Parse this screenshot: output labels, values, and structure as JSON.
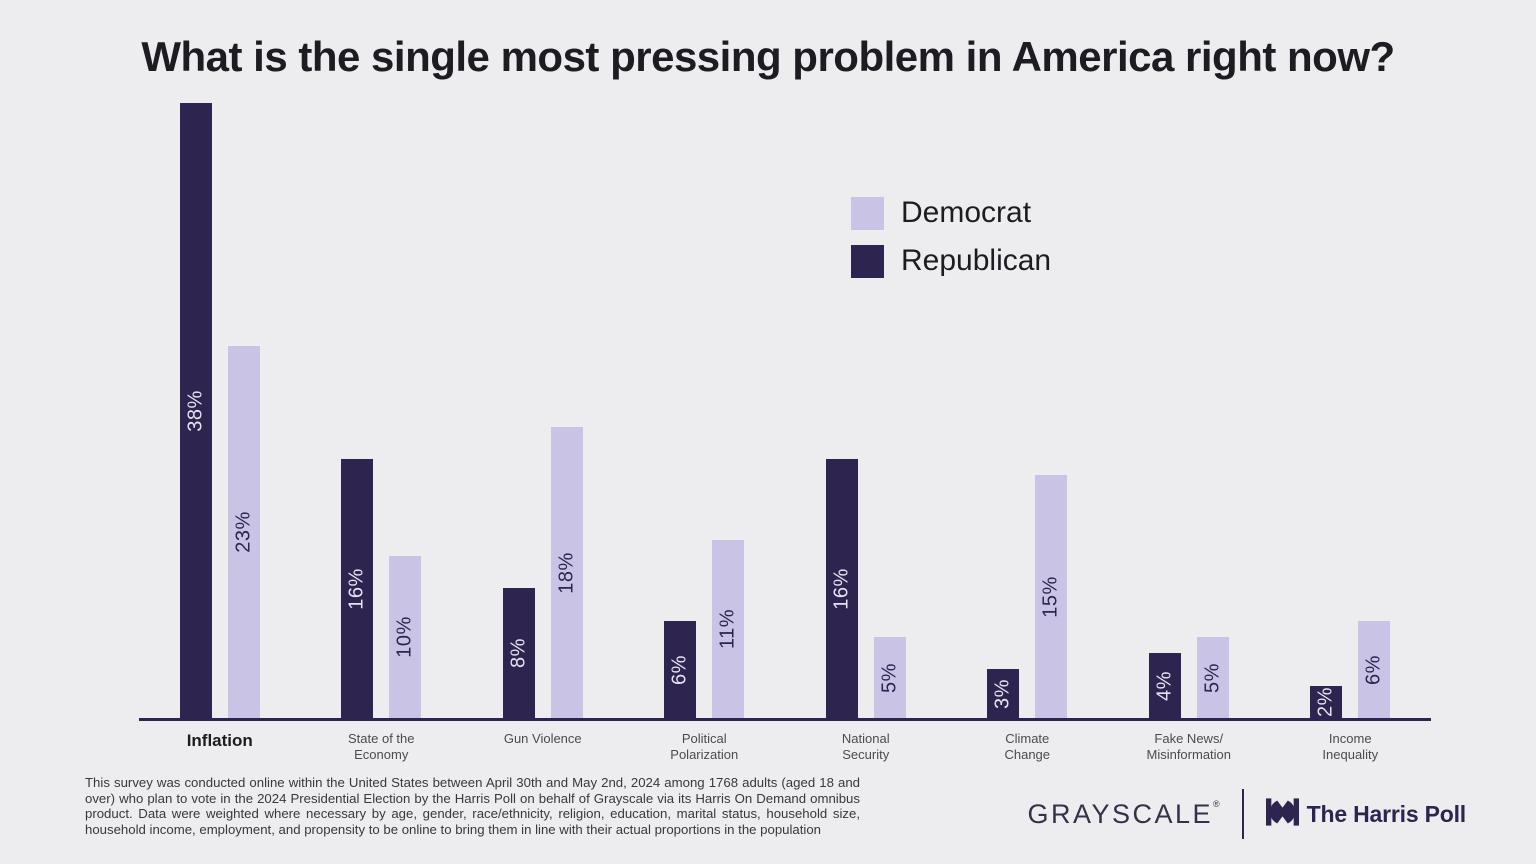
{
  "title": "What is the single most pressing problem in America right now?",
  "legend": {
    "items": [
      {
        "label": "Democrat",
        "color": "#c9c3e6"
      },
      {
        "label": "Republican",
        "color": "#2e2450"
      }
    ]
  },
  "chart_data": {
    "type": "bar",
    "title": "What is the single most pressing problem in America right now?",
    "categories": [
      "Inflation",
      "State of the Economy",
      "Gun Violence",
      "Political Polarization",
      "National Security",
      "Climate Change",
      "Fake News/Misinformation",
      "Income Inequality"
    ],
    "category_display": [
      "Inflation",
      "State of the\nEconomy",
      "Gun Violence",
      "Political\nPolarization",
      "National\nSecurity",
      "Climate\nChange",
      "Fake News/\nMisinformation",
      "Income\nInequality"
    ],
    "series": [
      {
        "name": "Republican",
        "color": "#2e2450",
        "value_label_color": "#e6e3f1",
        "values": [
          38,
          16,
          8,
          6,
          16,
          3,
          4,
          2
        ]
      },
      {
        "name": "Democrat",
        "color": "#c9c3e6",
        "value_label_color": "#2e2450",
        "values": [
          23,
          10,
          18,
          11,
          5,
          15,
          5,
          6
        ]
      }
    ],
    "value_suffix": "%",
    "ylim": [
      0,
      40
    ],
    "grid": false,
    "axis_line_color": "#2e2450",
    "legend_position": "upper-right",
    "emphasized_category": "Inflation"
  },
  "footnote": "This survey was conducted online within the United States between April 30th and May 2nd, 2024 among 1768 adults (aged 18 and over) who plan to vote in the 2024 Presidential Election by the Harris Poll on behalf of Grayscale via its Harris On Demand omnibus product. Data were weighted where necessary by age, gender, race/ethnicity, religion, education, marital status, household size, household income, employment, and propensity to be online to bring them in line with their actual proportions in the population",
  "footer": {
    "grayscale_wordmark": "GRAYSCALE",
    "grayscale_reg_mark": "®",
    "harris_poll_name": "The Harris Poll"
  }
}
